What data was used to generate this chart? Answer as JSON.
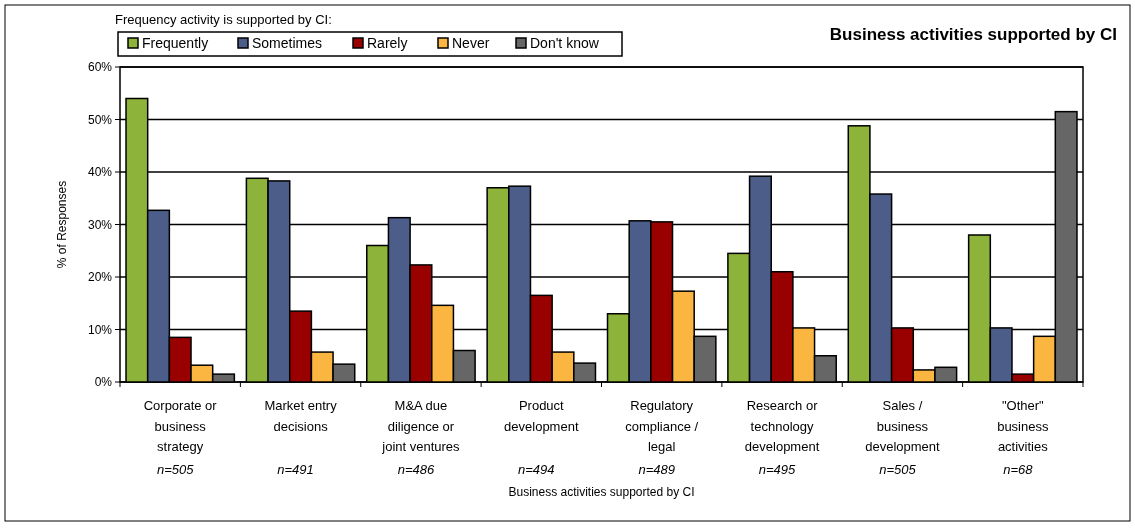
{
  "chart_data": {
    "type": "bar",
    "title": "Business activities supported by CI",
    "xlabel": "Business activities supported by CI",
    "ylabel": "% of Responses",
    "legend_title": "Frequency activity is supported by CI:",
    "categories": [
      "Corporate or business strategy",
      "Market entry decisions",
      "M&A due diligence or joint ventures",
      "Product development",
      "Regulatory compliance / legal",
      "Research or technology development",
      "Sales / business development",
      "\"Other\" business activities"
    ],
    "series": [
      {
        "name": "Frequently",
        "color": "#8db33a",
        "values": [
          54,
          38.8,
          26,
          37,
          13,
          24.5,
          48.8,
          28
        ]
      },
      {
        "name": "Sometimes",
        "color": "#4d5d8a",
        "values": [
          32.7,
          38.3,
          31.3,
          37.3,
          30.7,
          39.2,
          35.8,
          10.3
        ]
      },
      {
        "name": "Rarely",
        "color": "#990000",
        "values": [
          8.5,
          13.5,
          22.3,
          16.5,
          30.5,
          21,
          10.3,
          1.5
        ]
      },
      {
        "name": "Never",
        "color": "#fbb642",
        "values": [
          3.2,
          5.7,
          14.6,
          5.7,
          17.3,
          10.3,
          2.3,
          8.7
        ]
      },
      {
        "name": "Don't know",
        "color": "#666666",
        "values": [
          1.5,
          3.4,
          6,
          3.6,
          8.7,
          5,
          2.8,
          51.5
        ]
      }
    ],
    "annotations": [
      "n=505",
      "n=491",
      "n=486",
      "n=494",
      "n=489",
      "n=495",
      "n=505",
      "n=68"
    ],
    "ylim": [
      0,
      60
    ],
    "yticks": [
      {
        "value": 0,
        "label": "0%"
      },
      {
        "value": 10,
        "label": "10%"
      },
      {
        "value": 20,
        "label": "20%"
      },
      {
        "value": 30,
        "label": "30%"
      },
      {
        "value": 40,
        "label": "40%"
      },
      {
        "value": 50,
        "label": "50%"
      },
      {
        "value": 60,
        "label": "60%"
      }
    ],
    "grid": "y",
    "legend": "top left"
  }
}
